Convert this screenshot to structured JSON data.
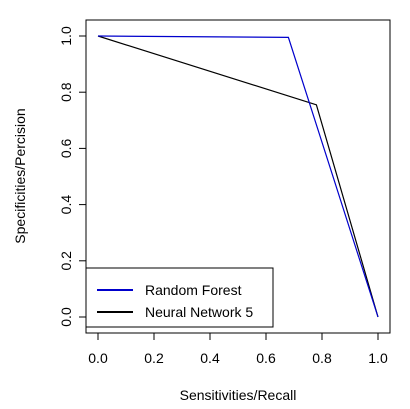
{
  "chart_data": {
    "type": "line",
    "title": "",
    "xlabel": "Sensitivities/Recall",
    "ylabel": "Specificities/Percision",
    "xlim": [
      0,
      1
    ],
    "ylim": [
      0,
      1
    ],
    "x_ticks": [
      0.0,
      0.2,
      0.4,
      0.6,
      0.8,
      1.0
    ],
    "x_tick_labels": [
      "0.0",
      "0.2",
      "0.4",
      "0.6",
      "0.8",
      "1.0"
    ],
    "y_ticks": [
      0.0,
      0.2,
      0.4,
      0.6,
      0.8,
      1.0
    ],
    "y_tick_labels": [
      "0.0",
      "0.2",
      "0.4",
      "0.6",
      "0.8",
      "1.0"
    ],
    "grid": false,
    "legend_position": "bottom-left",
    "series": [
      {
        "name": "Random Forest",
        "color": "#0000cc",
        "points": [
          [
            0.0,
            1.0
          ],
          [
            0.68,
            0.995
          ],
          [
            1.0,
            0.0
          ]
        ]
      },
      {
        "name": "Neural Network 5",
        "color": "#000000",
        "points": [
          [
            0.0,
            1.0
          ],
          [
            0.78,
            0.755
          ],
          [
            1.0,
            0.0
          ]
        ]
      }
    ]
  }
}
